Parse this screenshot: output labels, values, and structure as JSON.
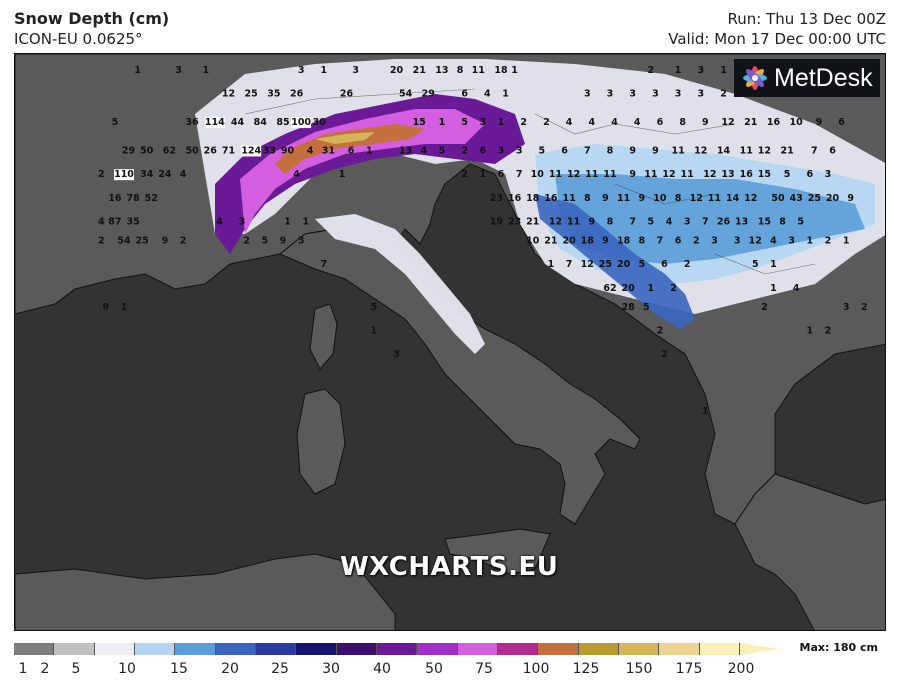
{
  "header": {
    "title": "Snow Depth (cm)",
    "subtitle": "ICON-EU 0.0625°",
    "run": "Run: Thu 13 Dec 00Z",
    "valid": "Valid: Mon 17 Dec 00:00 UTC"
  },
  "logo": {
    "text": "MetDesk",
    "icon": "metdesk-flower-icon"
  },
  "watermark": "WXCHARTS.EU",
  "legend": {
    "max_label": "Max: 180 cm",
    "ticks": [
      "1",
      "2",
      "5",
      "10",
      "15",
      "20",
      "25",
      "30",
      "40",
      "50",
      "75",
      "100",
      "125",
      "150",
      "175",
      "200"
    ],
    "colors": [
      "#7d7d7d",
      "#c0c0c0",
      "#eeeef4",
      "#b4d6f2",
      "#5b9ed8",
      "#3a66c0",
      "#2a3a9e",
      "#14146e",
      "#3c0e6e",
      "#6a1a96",
      "#a030c8",
      "#d45ee0",
      "#b02c8e",
      "#c4703e",
      "#b89a2e",
      "#d6b45a",
      "#ecd490",
      "#fbf0b6"
    ]
  },
  "map_values": [
    {
      "label": "1",
      "lon": 7.7,
      "lat": 47.4
    },
    {
      "label": "3",
      "lon": 8.6,
      "lat": 47.4
    },
    {
      "label": "1",
      "lon": 9.2,
      "lat": 47.4
    },
    {
      "label": "3",
      "lon": 11.3,
      "lat": 47.4
    },
    {
      "label": "1",
      "lon": 11.8,
      "lat": 47.4
    },
    {
      "label": "3",
      "lon": 12.5,
      "lat": 47.4
    },
    {
      "label": "20",
      "lon": 13.4,
      "lat": 47.4
    },
    {
      "label": "21",
      "lon": 13.9,
      "lat": 47.4
    },
    {
      "label": "13",
      "lon": 14.4,
      "lat": 47.4
    },
    {
      "label": "8",
      "lon": 14.8,
      "lat": 47.4
    },
    {
      "label": "11",
      "lon": 15.2,
      "lat": 47.4
    },
    {
      "label": "18",
      "lon": 15.7,
      "lat": 47.4
    },
    {
      "label": "1",
      "lon": 16.0,
      "lat": 47.4
    },
    {
      "label": "2",
      "lon": 19.0,
      "lat": 47.4
    },
    {
      "label": "1",
      "lon": 19.6,
      "lat": 47.4
    },
    {
      "label": "3",
      "lon": 20.1,
      "lat": 47.4
    },
    {
      "label": "1",
      "lon": 20.6,
      "lat": 47.4
    },
    {
      "label": "3",
      "lon": 21.1,
      "lat": 47.4
    },
    {
      "label": "12",
      "lon": 9.7,
      "lat": 46.9
    },
    {
      "label": "25",
      "lon": 10.2,
      "lat": 46.9
    },
    {
      "label": "35",
      "lon": 10.7,
      "lat": 46.9
    },
    {
      "label": "26",
      "lon": 11.2,
      "lat": 46.9
    },
    {
      "label": "26",
      "lon": 12.3,
      "lat": 46.9
    },
    {
      "label": "54",
      "lon": 13.6,
      "lat": 46.9
    },
    {
      "label": "29",
      "lon": 14.1,
      "lat": 46.9
    },
    {
      "label": "6",
      "lon": 14.9,
      "lat": 46.9
    },
    {
      "label": "4",
      "lon": 15.4,
      "lat": 46.9
    },
    {
      "label": "1",
      "lon": 15.8,
      "lat": 46.9
    },
    {
      "label": "3",
      "lon": 17.6,
      "lat": 46.9
    },
    {
      "label": "3",
      "lon": 18.1,
      "lat": 46.9
    },
    {
      "label": "3",
      "lon": 18.6,
      "lat": 46.9
    },
    {
      "label": "3",
      "lon": 19.1,
      "lat": 46.9
    },
    {
      "label": "3",
      "lon": 19.6,
      "lat": 46.9
    },
    {
      "label": "3",
      "lon": 20.1,
      "lat": 46.9
    },
    {
      "label": "2",
      "lon": 20.6,
      "lat": 46.9
    },
    {
      "label": "5",
      "lon": 7.2,
      "lat": 46.3
    },
    {
      "label": "36",
      "lon": 8.9,
      "lat": 46.3
    },
    {
      "label": "114",
      "lon": 9.4,
      "lat": 46.3
    },
    {
      "label": "44",
      "lon": 9.9,
      "lat": 46.3
    },
    {
      "label": "84",
      "lon": 10.4,
      "lat": 46.3
    },
    {
      "label": "85",
      "lon": 10.9,
      "lat": 46.3
    },
    {
      "label": "100",
      "lon": 11.3,
      "lat": 46.3
    },
    {
      "label": "30",
      "lon": 11.7,
      "lat": 46.3
    },
    {
      "label": "15",
      "lon": 13.9,
      "lat": 46.3
    },
    {
      "label": "1",
      "lon": 14.4,
      "lat": 46.3
    },
    {
      "label": "5",
      "lon": 14.9,
      "lat": 46.3
    },
    {
      "label": "3",
      "lon": 15.3,
      "lat": 46.3
    },
    {
      "label": "1",
      "lon": 15.7,
      "lat": 46.3
    },
    {
      "label": "2",
      "lon": 16.2,
      "lat": 46.3
    },
    {
      "label": "2",
      "lon": 16.7,
      "lat": 46.3
    },
    {
      "label": "4",
      "lon": 17.2,
      "lat": 46.3
    },
    {
      "label": "4",
      "lon": 17.7,
      "lat": 46.3
    },
    {
      "label": "4",
      "lon": 18.2,
      "lat": 46.3
    },
    {
      "label": "4",
      "lon": 18.7,
      "lat": 46.3
    },
    {
      "label": "6",
      "lon": 19.2,
      "lat": 46.3
    },
    {
      "label": "8",
      "lon": 19.7,
      "lat": 46.3
    },
    {
      "label": "9",
      "lon": 20.2,
      "lat": 46.3
    },
    {
      "label": "12",
      "lon": 20.7,
      "lat": 46.3
    },
    {
      "label": "21",
      "lon": 21.2,
      "lat": 46.3
    },
    {
      "label": "16",
      "lon": 21.7,
      "lat": 46.3
    },
    {
      "label": "10",
      "lon": 22.2,
      "lat": 46.3
    },
    {
      "label": "9",
      "lon": 22.7,
      "lat": 46.3
    },
    {
      "label": "6",
      "lon": 23.2,
      "lat": 46.3
    },
    {
      "label": "29",
      "lon": 7.5,
      "lat": 45.7
    },
    {
      "label": "50",
      "lon": 7.9,
      "lat": 45.7
    },
    {
      "label": "62",
      "lon": 8.4,
      "lat": 45.7
    },
    {
      "label": "50",
      "lon": 8.9,
      "lat": 45.7
    },
    {
      "label": "26",
      "lon": 9.3,
      "lat": 45.7
    },
    {
      "label": "71",
      "lon": 9.7,
      "lat": 45.7
    },
    {
      "label": "124",
      "lon": 10.2,
      "lat": 45.7
    },
    {
      "label": "33",
      "lon": 10.6,
      "lat": 45.7
    },
    {
      "label": "90",
      "lon": 11.0,
      "lat": 45.7
    },
    {
      "label": "4",
      "lon": 11.5,
      "lat": 45.7
    },
    {
      "label": "31",
      "lon": 11.9,
      "lat": 45.7
    },
    {
      "label": "6",
      "lon": 12.4,
      "lat": 45.7
    },
    {
      "label": "1",
      "lon": 12.8,
      "lat": 45.7
    },
    {
      "label": "13",
      "lon": 13.6,
      "lat": 45.7
    },
    {
      "label": "4",
      "lon": 14.0,
      "lat": 45.7
    },
    {
      "label": "5",
      "lon": 14.4,
      "lat": 45.7
    },
    {
      "label": "2",
      "lon": 14.9,
      "lat": 45.7
    },
    {
      "label": "6",
      "lon": 15.3,
      "lat": 45.7
    },
    {
      "label": "3",
      "lon": 15.7,
      "lat": 45.7
    },
    {
      "label": "3",
      "lon": 16.1,
      "lat": 45.7
    },
    {
      "label": "5",
      "lon": 16.6,
      "lat": 45.7
    },
    {
      "label": "6",
      "lon": 17.1,
      "lat": 45.7
    },
    {
      "label": "7",
      "lon": 17.6,
      "lat": 45.7
    },
    {
      "label": "8",
      "lon": 18.1,
      "lat": 45.7
    },
    {
      "label": "9",
      "lon": 18.6,
      "lat": 45.7
    },
    {
      "label": "9",
      "lon": 19.1,
      "lat": 45.7
    },
    {
      "label": "11",
      "lon": 19.6,
      "lat": 45.7
    },
    {
      "label": "12",
      "lon": 20.1,
      "lat": 45.7
    },
    {
      "label": "14",
      "lon": 20.6,
      "lat": 45.7
    },
    {
      "label": "11",
      "lon": 21.1,
      "lat": 45.7
    },
    {
      "label": "12",
      "lon": 21.5,
      "lat": 45.7
    },
    {
      "label": "21",
      "lon": 22.0,
      "lat": 45.7
    },
    {
      "label": "7",
      "lon": 22.6,
      "lat": 45.7
    },
    {
      "label": "6",
      "lon": 23.0,
      "lat": 45.7
    },
    {
      "label": "2",
      "lon": 6.9,
      "lat": 45.2
    },
    {
      "label": "110",
      "lon": 7.4,
      "lat": 45.2
    },
    {
      "label": "34",
      "lon": 7.9,
      "lat": 45.2
    },
    {
      "label": "24",
      "lon": 8.3,
      "lat": 45.2
    },
    {
      "label": "4",
      "lon": 8.7,
      "lat": 45.2
    },
    {
      "label": "4",
      "lon": 11.2,
      "lat": 45.2
    },
    {
      "label": "1",
      "lon": 12.2,
      "lat": 45.2
    },
    {
      "label": "2",
      "lon": 14.9,
      "lat": 45.2
    },
    {
      "label": "1",
      "lon": 15.3,
      "lat": 45.2
    },
    {
      "label": "6",
      "lon": 15.7,
      "lat": 45.2
    },
    {
      "label": "7",
      "lon": 16.1,
      "lat": 45.2
    },
    {
      "label": "10",
      "lon": 16.5,
      "lat": 45.2
    },
    {
      "label": "11",
      "lon": 16.9,
      "lat": 45.2
    },
    {
      "label": "12",
      "lon": 17.3,
      "lat": 45.2
    },
    {
      "label": "11",
      "lon": 17.7,
      "lat": 45.2
    },
    {
      "label": "11",
      "lon": 18.1,
      "lat": 45.2
    },
    {
      "label": "9",
      "lon": 18.6,
      "lat": 45.2
    },
    {
      "label": "11",
      "lon": 19.0,
      "lat": 45.2
    },
    {
      "label": "12",
      "lon": 19.4,
      "lat": 45.2
    },
    {
      "label": "11",
      "lon": 19.8,
      "lat": 45.2
    },
    {
      "label": "12",
      "lon": 20.3,
      "lat": 45.2
    },
    {
      "label": "13",
      "lon": 20.7,
      "lat": 45.2
    },
    {
      "label": "16",
      "lon": 21.1,
      "lat": 45.2
    },
    {
      "label": "15",
      "lon": 21.5,
      "lat": 45.2
    },
    {
      "label": "5",
      "lon": 22.0,
      "lat": 45.2
    },
    {
      "label": "6",
      "lon": 22.5,
      "lat": 45.2
    },
    {
      "label": "3",
      "lon": 22.9,
      "lat": 45.2
    },
    {
      "label": "16",
      "lon": 7.2,
      "lat": 44.7
    },
    {
      "label": "78",
      "lon": 7.6,
      "lat": 44.7
    },
    {
      "label": "52",
      "lon": 8.0,
      "lat": 44.7
    },
    {
      "label": "23",
      "lon": 15.6,
      "lat": 44.7
    },
    {
      "label": "16",
      "lon": 16.0,
      "lat": 44.7
    },
    {
      "label": "18",
      "lon": 16.4,
      "lat": 44.7
    },
    {
      "label": "16",
      "lon": 16.8,
      "lat": 44.7
    },
    {
      "label": "11",
      "lon": 17.2,
      "lat": 44.7
    },
    {
      "label": "8",
      "lon": 17.6,
      "lat": 44.7
    },
    {
      "label": "9",
      "lon": 18.0,
      "lat": 44.7
    },
    {
      "label": "11",
      "lon": 18.4,
      "lat": 44.7
    },
    {
      "label": "9",
      "lon": 18.8,
      "lat": 44.7
    },
    {
      "label": "10",
      "lon": 19.2,
      "lat": 44.7
    },
    {
      "label": "8",
      "lon": 19.6,
      "lat": 44.7
    },
    {
      "label": "12",
      "lon": 20.0,
      "lat": 44.7
    },
    {
      "label": "11",
      "lon": 20.4,
      "lat": 44.7
    },
    {
      "label": "14",
      "lon": 20.8,
      "lat": 44.7
    },
    {
      "label": "12",
      "lon": 21.2,
      "lat": 44.7
    },
    {
      "label": "50",
      "lon": 21.8,
      "lat": 44.7
    },
    {
      "label": "43",
      "lon": 22.2,
      "lat": 44.7
    },
    {
      "label": "25",
      "lon": 22.6,
      "lat": 44.7
    },
    {
      "label": "20",
      "lon": 23.0,
      "lat": 44.7
    },
    {
      "label": "9",
      "lon": 23.4,
      "lat": 44.7
    },
    {
      "label": "4",
      "lon": 6.9,
      "lat": 44.2
    },
    {
      "label": "87",
      "lon": 7.2,
      "lat": 44.2
    },
    {
      "label": "35",
      "lon": 7.6,
      "lat": 44.2
    },
    {
      "label": "4",
      "lon": 9.5,
      "lat": 44.2
    },
    {
      "label": "3",
      "lon": 10.0,
      "lat": 44.2
    },
    {
      "label": "1",
      "lon": 11.0,
      "lat": 44.2
    },
    {
      "label": "1",
      "lon": 11.4,
      "lat": 44.2
    },
    {
      "label": "19",
      "lon": 15.6,
      "lat": 44.2
    },
    {
      "label": "23",
      "lon": 16.0,
      "lat": 44.2
    },
    {
      "label": "21",
      "lon": 16.4,
      "lat": 44.2
    },
    {
      "label": "12",
      "lon": 16.9,
      "lat": 44.2
    },
    {
      "label": "11",
      "lon": 17.3,
      "lat": 44.2
    },
    {
      "label": "9",
      "lon": 17.7,
      "lat": 44.2
    },
    {
      "label": "8",
      "lon": 18.1,
      "lat": 44.2
    },
    {
      "label": "7",
      "lon": 18.6,
      "lat": 44.2
    },
    {
      "label": "5",
      "lon": 19.0,
      "lat": 44.2
    },
    {
      "label": "4",
      "lon": 19.4,
      "lat": 44.2
    },
    {
      "label": "3",
      "lon": 19.8,
      "lat": 44.2
    },
    {
      "label": "7",
      "lon": 20.2,
      "lat": 44.2
    },
    {
      "label": "26",
      "lon": 20.6,
      "lat": 44.2
    },
    {
      "label": "13",
      "lon": 21.0,
      "lat": 44.2
    },
    {
      "label": "15",
      "lon": 21.5,
      "lat": 44.2
    },
    {
      "label": "8",
      "lon": 21.9,
      "lat": 44.2
    },
    {
      "label": "5",
      "lon": 22.3,
      "lat": 44.2
    },
    {
      "label": "2",
      "lon": 6.9,
      "lat": 43.8
    },
    {
      "label": "54",
      "lon": 7.4,
      "lat": 43.8
    },
    {
      "label": "25",
      "lon": 7.8,
      "lat": 43.8
    },
    {
      "label": "9",
      "lon": 8.3,
      "lat": 43.8
    },
    {
      "label": "2",
      "lon": 8.7,
      "lat": 43.8
    },
    {
      "label": "2",
      "lon": 10.1,
      "lat": 43.8
    },
    {
      "label": "5",
      "lon": 10.5,
      "lat": 43.8
    },
    {
      "label": "9",
      "lon": 10.9,
      "lat": 43.8
    },
    {
      "label": "3",
      "lon": 11.3,
      "lat": 43.8
    },
    {
      "label": "10",
      "lon": 16.4,
      "lat": 43.8
    },
    {
      "label": "21",
      "lon": 16.8,
      "lat": 43.8
    },
    {
      "label": "20",
      "lon": 17.2,
      "lat": 43.8
    },
    {
      "label": "18",
      "lon": 17.6,
      "lat": 43.8
    },
    {
      "label": "9",
      "lon": 18.0,
      "lat": 43.8
    },
    {
      "label": "18",
      "lon": 18.4,
      "lat": 43.8
    },
    {
      "label": "8",
      "lon": 18.8,
      "lat": 43.8
    },
    {
      "label": "7",
      "lon": 19.2,
      "lat": 43.8
    },
    {
      "label": "6",
      "lon": 19.6,
      "lat": 43.8
    },
    {
      "label": "2",
      "lon": 20.0,
      "lat": 43.8
    },
    {
      "label": "3",
      "lon": 20.4,
      "lat": 43.8
    },
    {
      "label": "3",
      "lon": 20.9,
      "lat": 43.8
    },
    {
      "label": "12",
      "lon": 21.3,
      "lat": 43.8
    },
    {
      "label": "4",
      "lon": 21.7,
      "lat": 43.8
    },
    {
      "label": "3",
      "lon": 22.1,
      "lat": 43.8
    },
    {
      "label": "1",
      "lon": 22.5,
      "lat": 43.8
    },
    {
      "label": "2",
      "lon": 22.9,
      "lat": 43.8
    },
    {
      "label": "1",
      "lon": 23.3,
      "lat": 43.8
    },
    {
      "label": "7",
      "lon": 11.8,
      "lat": 43.3
    },
    {
      "label": "1",
      "lon": 16.8,
      "lat": 43.3
    },
    {
      "label": "7",
      "lon": 17.2,
      "lat": 43.3
    },
    {
      "label": "12",
      "lon": 17.6,
      "lat": 43.3
    },
    {
      "label": "25",
      "lon": 18.0,
      "lat": 43.3
    },
    {
      "label": "20",
      "lon": 18.4,
      "lat": 43.3
    },
    {
      "label": "5",
      "lon": 18.8,
      "lat": 43.3
    },
    {
      "label": "6",
      "lon": 19.3,
      "lat": 43.3
    },
    {
      "label": "2",
      "lon": 19.8,
      "lat": 43.3
    },
    {
      "label": "5",
      "lon": 21.3,
      "lat": 43.3
    },
    {
      "label": "1",
      "lon": 21.7,
      "lat": 43.3
    },
    {
      "label": "62",
      "lon": 18.1,
      "lat": 42.8
    },
    {
      "label": "20",
      "lon": 18.5,
      "lat": 42.8
    },
    {
      "label": "1",
      "lon": 19.0,
      "lat": 42.8
    },
    {
      "label": "2",
      "lon": 19.5,
      "lat": 42.8
    },
    {
      "label": "1",
      "lon": 21.7,
      "lat": 42.8
    },
    {
      "label": "4",
      "lon": 22.2,
      "lat": 42.8
    },
    {
      "label": "5",
      "lon": 12.9,
      "lat": 42.4
    },
    {
      "label": "28",
      "lon": 18.5,
      "lat": 42.4
    },
    {
      "label": "5",
      "lon": 18.9,
      "lat": 42.4
    },
    {
      "label": "9",
      "lon": 7.0,
      "lat": 42.4
    },
    {
      "label": "1",
      "lon": 7.4,
      "lat": 42.4
    },
    {
      "label": "2",
      "lon": 21.5,
      "lat": 42.4
    },
    {
      "label": "3",
      "lon": 23.3,
      "lat": 42.4
    },
    {
      "label": "2",
      "lon": 23.7,
      "lat": 42.4
    },
    {
      "label": "1",
      "lon": 12.9,
      "lat": 41.9
    },
    {
      "label": "2",
      "lon": 19.2,
      "lat": 41.9
    },
    {
      "label": "1",
      "lon": 22.5,
      "lat": 41.9
    },
    {
      "label": "2",
      "lon": 22.9,
      "lat": 41.9
    },
    {
      "label": "3",
      "lon": 13.4,
      "lat": 41.4
    },
    {
      "label": "2",
      "lon": 19.3,
      "lat": 41.4
    },
    {
      "label": "1",
      "lon": 20.2,
      "lat": 40.2
    }
  ]
}
